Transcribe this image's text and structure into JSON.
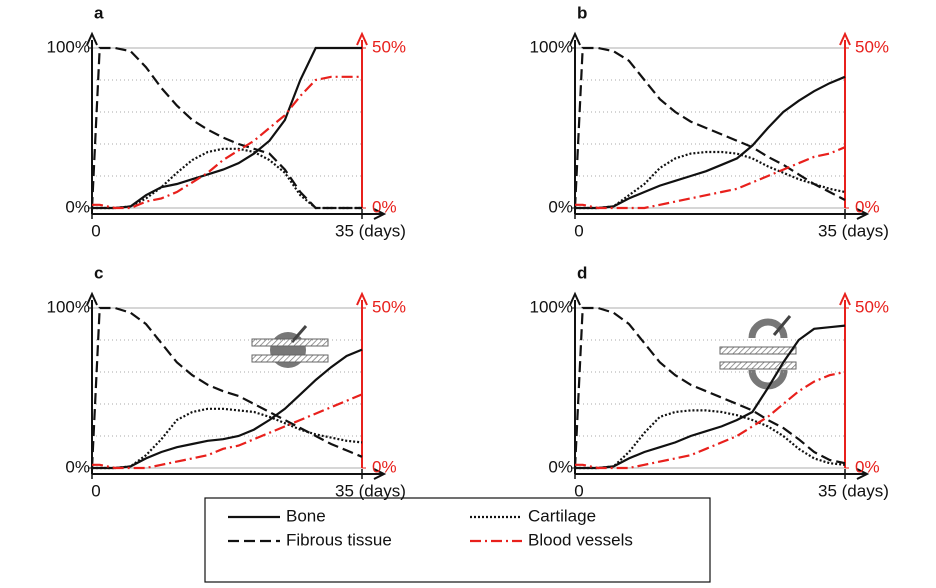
{
  "chart_data": [
    {
      "type": "line",
      "title": "a",
      "x": [
        0,
        1,
        3,
        5,
        7,
        9,
        11,
        13,
        15,
        17,
        19,
        21,
        23,
        25,
        27,
        29,
        31,
        33,
        35
      ],
      "series": [
        {
          "values": [
            0,
            0,
            0,
            1,
            8,
            13,
            15,
            18,
            21,
            24,
            28,
            34,
            42,
            55,
            80,
            100,
            100,
            100,
            100
          ]
        },
        {
          "values": [
            0,
            100,
            100,
            98,
            88,
            75,
            64,
            55,
            49,
            44,
            40,
            37,
            34,
            24,
            10,
            0,
            0,
            0,
            0
          ]
        },
        {
          "values": [
            0,
            0,
            0,
            1,
            6,
            13,
            22,
            30,
            35,
            37,
            37,
            35,
            30,
            22,
            8,
            0,
            0,
            0,
            0
          ]
        },
        {
          "values": [
            1,
            1,
            0,
            0,
            2,
            3,
            5,
            8,
            11,
            15,
            18,
            21,
            25,
            29,
            35,
            40,
            41,
            41,
            41
          ],
          "axis": "y2"
        }
      ],
      "xlim": [
        0,
        35
      ],
      "xticks": [
        0,
        {
          "value": 35,
          "label": "35 (days)"
        }
      ],
      "ylim": [
        0,
        100
      ],
      "yticks": [
        {
          "value": 0,
          "label": "0%"
        },
        {
          "value": 100,
          "label": "100%"
        }
      ],
      "y2lim": [
        0,
        50
      ],
      "y2ticks": [
        {
          "value": 0,
          "label": "0%"
        },
        {
          "value": 50,
          "label": "50%"
        }
      ],
      "grid_yticks": [
        20,
        40,
        60,
        80
      ]
    },
    {
      "type": "line",
      "title": "b",
      "x": [
        0,
        1,
        3,
        5,
        7,
        9,
        11,
        13,
        15,
        17,
        19,
        21,
        23,
        25,
        27,
        29,
        31,
        33,
        35
      ],
      "series": [
        {
          "values": [
            0,
            0,
            0,
            1,
            6,
            10,
            14,
            17,
            20,
            23,
            27,
            31,
            39,
            50,
            60,
            67,
            73,
            78,
            82
          ]
        },
        {
          "values": [
            0,
            100,
            100,
            98,
            92,
            80,
            68,
            60,
            54,
            50,
            46,
            42,
            38,
            32,
            27,
            21,
            15,
            10,
            5
          ]
        },
        {
          "values": [
            0,
            0,
            0,
            1,
            8,
            15,
            25,
            31,
            34,
            35,
            35,
            34,
            31,
            26,
            22,
            18,
            15,
            12,
            10
          ]
        },
        {
          "values": [
            1,
            1,
            0,
            0,
            0,
            0,
            1,
            2,
            3,
            4,
            5,
            6,
            8,
            10,
            12,
            14,
            16,
            17,
            19
          ],
          "axis": "y2"
        }
      ],
      "xlim": [
        0,
        35
      ],
      "xticks": [
        0,
        {
          "value": 35,
          "label": "35 (days)"
        }
      ],
      "ylim": [
        0,
        100
      ],
      "yticks": [
        {
          "value": 0,
          "label": "0%"
        },
        {
          "value": 100,
          "label": "100%"
        }
      ],
      "y2lim": [
        0,
        50
      ],
      "y2ticks": [
        {
          "value": 0,
          "label": "0%"
        },
        {
          "value": 50,
          "label": "50%"
        }
      ],
      "grid_yticks": [
        20,
        40,
        60,
        80
      ]
    },
    {
      "type": "line",
      "title": "c",
      "x": [
        0,
        1,
        3,
        5,
        7,
        9,
        11,
        13,
        15,
        17,
        19,
        21,
        23,
        25,
        27,
        29,
        31,
        33,
        35
      ],
      "series": [
        {
          "values": [
            0,
            0,
            0,
            1,
            6,
            10,
            13,
            15,
            17,
            18,
            20,
            24,
            30,
            37,
            46,
            55,
            63,
            70,
            74
          ]
        },
        {
          "values": [
            0,
            100,
            100,
            97,
            90,
            78,
            66,
            58,
            52,
            48,
            45,
            40,
            35,
            30,
            25,
            20,
            15,
            11,
            7
          ]
        },
        {
          "values": [
            0,
            0,
            0,
            1,
            8,
            18,
            30,
            35,
            37,
            37,
            36,
            35,
            32,
            28,
            24,
            21,
            19,
            17,
            16
          ]
        },
        {
          "values": [
            1,
            1,
            0,
            0,
            0,
            1,
            2,
            3,
            4,
            6,
            7,
            9,
            11,
            13,
            15,
            17,
            19,
            21,
            23
          ],
          "axis": "y2"
        }
      ],
      "xlim": [
        0,
        35
      ],
      "xticks": [
        0,
        {
          "value": 35,
          "label": "35 (days)"
        }
      ],
      "ylim": [
        0,
        100
      ],
      "yticks": [
        {
          "value": 0,
          "label": "0%"
        },
        {
          "value": 100,
          "label": "100%"
        }
      ],
      "y2lim": [
        0,
        50
      ],
      "y2ticks": [
        {
          "value": 0,
          "label": "0%"
        },
        {
          "value": 50,
          "label": "50%"
        }
      ],
      "grid_yticks": [
        20,
        40,
        60,
        80
      ]
    },
    {
      "type": "line",
      "title": "d",
      "x": [
        0,
        1,
        3,
        5,
        7,
        9,
        11,
        13,
        15,
        17,
        19,
        21,
        23,
        25,
        27,
        29,
        31,
        33,
        35
      ],
      "series": [
        {
          "values": [
            0,
            0,
            0,
            1,
            6,
            10,
            13,
            16,
            20,
            23,
            26,
            30,
            35,
            50,
            66,
            80,
            87,
            88,
            89
          ]
        },
        {
          "values": [
            0,
            100,
            100,
            97,
            90,
            78,
            66,
            58,
            52,
            48,
            44,
            40,
            36,
            30,
            25,
            18,
            10,
            5,
            3
          ]
        },
        {
          "values": [
            0,
            0,
            0,
            1,
            10,
            22,
            32,
            35,
            36,
            36,
            35,
            33,
            30,
            26,
            20,
            12,
            6,
            3,
            2
          ]
        },
        {
          "values": [
            1,
            1,
            0,
            0,
            0,
            1,
            2,
            3,
            4,
            6,
            8,
            10,
            13,
            16,
            20,
            24,
            27,
            29,
            30
          ],
          "axis": "y2"
        }
      ],
      "xlim": [
        0,
        35
      ],
      "xticks": [
        0,
        {
          "value": 35,
          "label": "35 (days)"
        }
      ],
      "ylim": [
        0,
        100
      ],
      "yticks": [
        {
          "value": 0,
          "label": "0%"
        },
        {
          "value": 100,
          "label": "100%"
        }
      ],
      "y2lim": [
        0,
        50
      ],
      "y2ticks": [
        {
          "value": 0,
          "label": "0%"
        },
        {
          "value": 50,
          "label": "50%"
        }
      ],
      "grid_yticks": [
        20,
        40,
        60,
        80
      ]
    }
  ],
  "legend": [
    {
      "name": "Bone",
      "color": "#111111",
      "style": "solid"
    },
    {
      "name": "Fibrous tissue",
      "color": "#111111",
      "style": "dashed"
    },
    {
      "name": "Cartilage",
      "color": "#111111",
      "style": "dotted"
    },
    {
      "name": "Blood vessels",
      "color": "#e8201c",
      "style": "dashdot"
    }
  ]
}
